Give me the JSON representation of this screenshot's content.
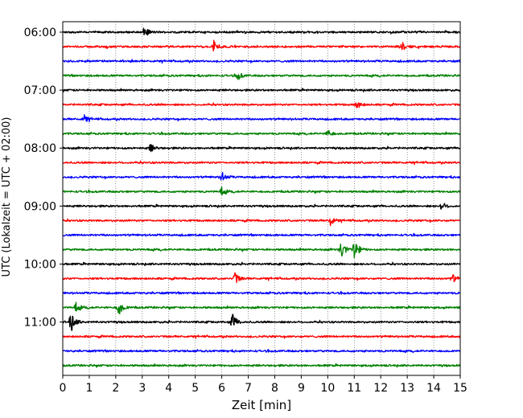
{
  "chart_data": {
    "type": "line",
    "xlabel": "Zeit  [min]",
    "ylabel": "UTC (Lokalzeit = UTC + 02:00)",
    "xlim": [
      0,
      15
    ],
    "x_ticks": [
      0,
      1,
      2,
      3,
      4,
      5,
      6,
      7,
      8,
      9,
      10,
      11,
      12,
      13,
      14,
      15
    ],
    "y_ticks": [
      "06:00",
      "07:00",
      "08:00",
      "09:00",
      "10:00",
      "11:00"
    ],
    "grid": "vertical dotted",
    "trace_interval_minutes": 15,
    "color_cycle": [
      "#000000",
      "#ff0000",
      "#0000ff",
      "#008000"
    ],
    "rows": [
      "06:00",
      "06:15",
      "06:30",
      "06:45",
      "07:00",
      "07:15",
      "07:30",
      "07:45",
      "08:00",
      "08:15",
      "08:30",
      "08:45",
      "09:00",
      "09:15",
      "09:30",
      "09:45",
      "10:00",
      "10:15",
      "10:30",
      "10:45",
      "11:00",
      "11:15",
      "11:30",
      "11:45"
    ],
    "events": [
      {
        "row": "06:00",
        "minute": 3.1,
        "amp": 0.35
      },
      {
        "row": "06:15",
        "minute": 5.7,
        "amp": 0.5
      },
      {
        "row": "06:15",
        "minute": 12.8,
        "amp": 0.35
      },
      {
        "row": "06:45",
        "minute": 6.6,
        "amp": 0.3
      },
      {
        "row": "07:15",
        "minute": 11.1,
        "amp": 0.3
      },
      {
        "row": "07:30",
        "minute": 0.8,
        "amp": 0.3
      },
      {
        "row": "07:45",
        "minute": 10.0,
        "amp": 0.3
      },
      {
        "row": "08:00",
        "minute": 3.3,
        "amp": 0.3
      },
      {
        "row": "08:30",
        "minute": 6.0,
        "amp": 0.35
      },
      {
        "row": "08:45",
        "minute": 6.0,
        "amp": 0.3
      },
      {
        "row": "09:00",
        "minute": 14.3,
        "amp": 0.3
      },
      {
        "row": "09:15",
        "minute": 10.1,
        "amp": 0.3
      },
      {
        "row": "09:45",
        "minute": 10.5,
        "amp": 0.75
      },
      {
        "row": "09:45",
        "minute": 11.0,
        "amp": 0.85
      },
      {
        "row": "10:15",
        "minute": 6.5,
        "amp": 0.4
      },
      {
        "row": "10:15",
        "minute": 14.7,
        "amp": 0.3
      },
      {
        "row": "10:45",
        "minute": 2.1,
        "amp": 0.6
      },
      {
        "row": "10:45",
        "minute": 0.5,
        "amp": 0.35
      },
      {
        "row": "11:00",
        "minute": 0.3,
        "amp": 0.75
      },
      {
        "row": "11:00",
        "minute": 6.4,
        "amp": 0.65
      }
    ]
  }
}
